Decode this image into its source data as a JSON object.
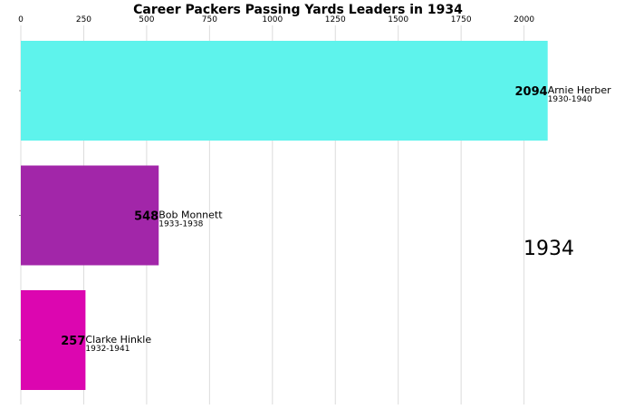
{
  "chart_data": {
    "type": "bar",
    "orientation": "horizontal",
    "title": "Career Packers Passing Yards Leaders in 1934",
    "year_label": "1934",
    "xlim": [
      0,
      2200
    ],
    "x_ticks": [
      0,
      250,
      500,
      750,
      1000,
      1250,
      1500,
      1750,
      2000
    ],
    "grid": true,
    "bars": [
      {
        "name": "Arnie Herber",
        "years": "1930-1940",
        "value": 2094,
        "value_label": "2094",
        "color": "#5ef3ec"
      },
      {
        "name": "Bob Monnett",
        "years": "1933-1938",
        "value": 548,
        "value_label": "548",
        "color": "#a226a9"
      },
      {
        "name": "Clarke Hinkle",
        "years": "1932-1941",
        "value": 257,
        "value_label": "257",
        "color": "#dc06b0"
      }
    ]
  }
}
